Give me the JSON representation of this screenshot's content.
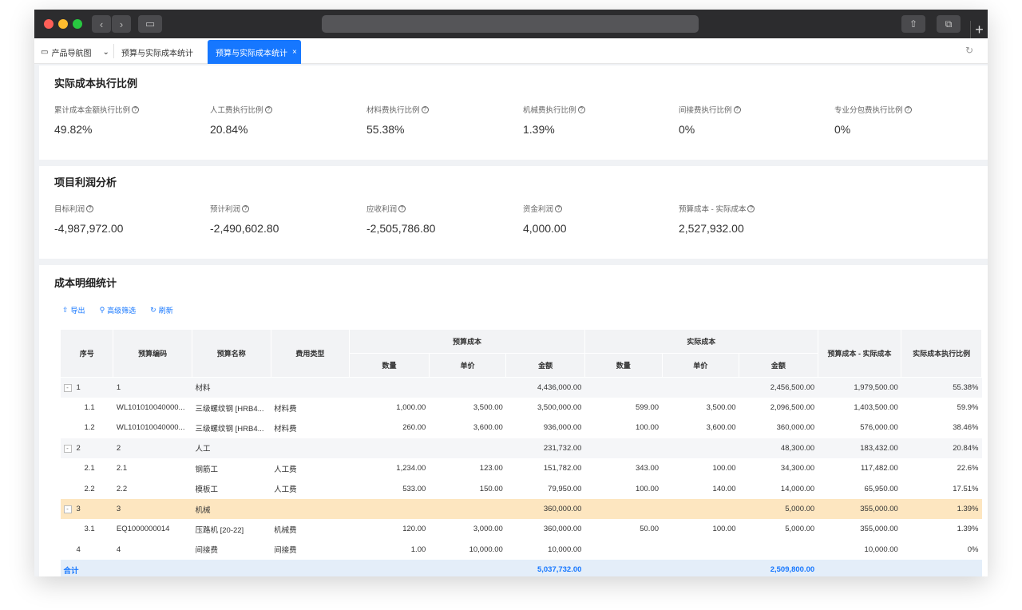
{
  "tabs": {
    "nav_label": "产品导航图",
    "tab1": "预算与实际成本统计",
    "tab2": "预算与实际成本统计",
    "close": "×"
  },
  "ratio_section": {
    "title": "实际成本执行比例",
    "metrics": [
      {
        "label": "累计成本金额执行比例",
        "value": "49.82%"
      },
      {
        "label": "人工费执行比例",
        "value": "20.84%"
      },
      {
        "label": "材料费执行比例",
        "value": "55.38%"
      },
      {
        "label": "机械费执行比例",
        "value": "1.39%"
      },
      {
        "label": "间接费执行比例",
        "value": "0%"
      },
      {
        "label": "专业分包费执行比例",
        "value": "0%"
      }
    ]
  },
  "profit_section": {
    "title": "项目利润分析",
    "metrics": [
      {
        "label": "目标利润",
        "value": "-4,987,972.00"
      },
      {
        "label": "预计利润",
        "value": "-2,490,602.80"
      },
      {
        "label": "应收利润",
        "value": "-2,505,786.80"
      },
      {
        "label": "资金利润",
        "value": "4,000.00"
      },
      {
        "label": "预算成本 - 实际成本",
        "value": "2,527,932.00"
      }
    ]
  },
  "detail_section": {
    "title": "成本明细统计",
    "toolbar": {
      "export": "导出",
      "filter": "高级筛选",
      "refresh": "刷新"
    },
    "headers": {
      "seq": "序号",
      "code": "预算编码",
      "name": "预算名称",
      "type": "费用类型",
      "budget": "预算成本",
      "actual": "实际成本",
      "qty": "数量",
      "price": "单价",
      "amount": "金额",
      "diff": "预算成本 - 实际成本",
      "ratio": "实际成本执行比例"
    },
    "rows": [
      [
        "1",
        "1",
        "材料",
        "",
        "",
        "",
        "4,436,000.00",
        "",
        "",
        "2,456,500.00",
        "1,979,500.00",
        "55.38%"
      ],
      [
        "1.1",
        "WL101010040000...",
        "三级螺纹钢 [HRB4...",
        "材料费",
        "1,000.00",
        "3,500.00",
        "3,500,000.00",
        "599.00",
        "3,500.00",
        "2,096,500.00",
        "1,403,500.00",
        "59.9%"
      ],
      [
        "1.2",
        "WL101010040000...",
        "三级螺纹钢 [HRB4...",
        "材料费",
        "260.00",
        "3,600.00",
        "936,000.00",
        "100.00",
        "3,600.00",
        "360,000.00",
        "576,000.00",
        "38.46%"
      ],
      [
        "2",
        "2",
        "人工",
        "",
        "",
        "",
        "231,732.00",
        "",
        "",
        "48,300.00",
        "183,432.00",
        "20.84%"
      ],
      [
        "2.1",
        "2.1",
        "钢筋工",
        "人工费",
        "1,234.00",
        "123.00",
        "151,782.00",
        "343.00",
        "100.00",
        "34,300.00",
        "117,482.00",
        "22.6%"
      ],
      [
        "2.2",
        "2.2",
        "模板工",
        "人工费",
        "533.00",
        "150.00",
        "79,950.00",
        "100.00",
        "140.00",
        "14,000.00",
        "65,950.00",
        "17.51%"
      ],
      [
        "3",
        "3",
        "机械",
        "",
        "",
        "",
        "360,000.00",
        "",
        "",
        "5,000.00",
        "355,000.00",
        "1.39%"
      ],
      [
        "3.1",
        "EQ1000000014",
        "压路机 [20-22]",
        "机械费",
        "120.00",
        "3,000.00",
        "360,000.00",
        "50.00",
        "100.00",
        "5,000.00",
        "355,000.00",
        "1.39%"
      ],
      [
        "4",
        "4",
        "间接费",
        "间接费",
        "1.00",
        "10,000.00",
        "10,000.00",
        "",
        "",
        "",
        "10,000.00",
        "0%"
      ]
    ],
    "total": {
      "label": "合计",
      "budget_amount": "5,037,732.00",
      "actual_amount": "2,509,800.00"
    }
  }
}
